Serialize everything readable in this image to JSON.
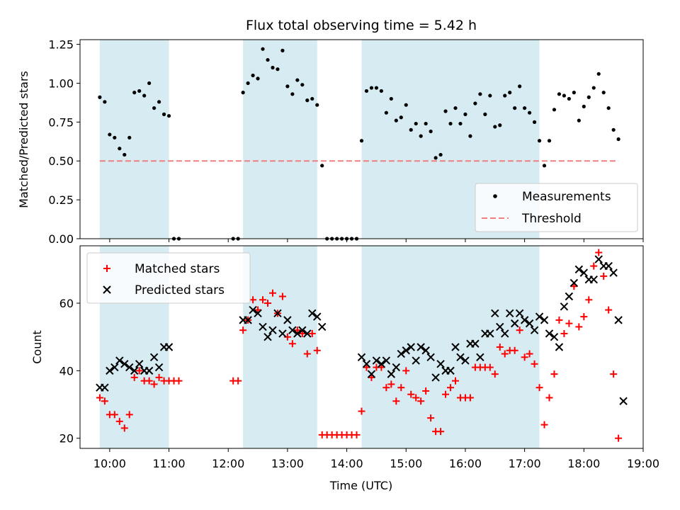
{
  "title": "Flux total observing time = 5.42 h",
  "colors": {
    "shade": "#add8e6",
    "measure": "#000000",
    "threshold": "#f08080",
    "matched": "#ff0000",
    "predicted": "#000000"
  },
  "chart_data": [
    {
      "type": "scatter",
      "ylabel": "Matched/Predicted stars",
      "ylim": [
        0,
        1.28
      ],
      "yticks": [
        0.0,
        0.25,
        0.5,
        0.75,
        1.0,
        1.25
      ],
      "ytick_labels": [
        "0.00",
        "0.25",
        "0.50",
        "0.75",
        "1.00",
        "1.25"
      ],
      "legend": {
        "position": "lower-right",
        "entries": [
          "Measurements",
          "Threshold"
        ]
      },
      "threshold": {
        "name": "Threshold",
        "y": 0.5,
        "x_range": [
          "09:50",
          "18:35"
        ]
      },
      "series": [
        {
          "name": "Measurements",
          "x": [
            "09:50",
            "09:55",
            "10:00",
            "10:05",
            "10:10",
            "10:15",
            "10:20",
            "10:25",
            "10:30",
            "10:35",
            "10:40",
            "10:45",
            "10:50",
            "10:55",
            "11:00",
            "11:05",
            "11:10",
            "12:05",
            "12:10",
            "12:15",
            "12:20",
            "12:25",
            "12:30",
            "12:35",
            "12:40",
            "12:45",
            "12:50",
            "12:55",
            "13:00",
            "13:05",
            "13:10",
            "13:15",
            "13:20",
            "13:25",
            "13:30",
            "13:35",
            "13:40",
            "13:45",
            "13:50",
            "13:55",
            "14:00",
            "14:05",
            "14:10",
            "14:15",
            "14:20",
            "14:25",
            "14:30",
            "14:35",
            "14:40",
            "14:45",
            "14:50",
            "14:55",
            "15:00",
            "15:05",
            "15:10",
            "15:15",
            "15:20",
            "15:25",
            "15:30",
            "15:35",
            "15:40",
            "15:45",
            "15:50",
            "15:55",
            "16:00",
            "16:05",
            "16:10",
            "16:15",
            "16:20",
            "16:25",
            "16:30",
            "16:35",
            "16:40",
            "16:45",
            "16:50",
            "16:55",
            "17:00",
            "17:05",
            "17:10",
            "17:15",
            "17:20",
            "17:25",
            "17:30",
            "17:35",
            "17:40",
            "17:45",
            "17:50",
            "17:55",
            "18:00",
            "18:05",
            "18:10",
            "18:15",
            "18:20",
            "18:25",
            "18:30",
            "18:35"
          ],
          "y": [
            0.91,
            0.88,
            0.67,
            0.65,
            0.58,
            0.54,
            0.65,
            0.94,
            0.95,
            0.92,
            1.0,
            0.84,
            0.88,
            0.8,
            0.79,
            0.0,
            0.0,
            0.0,
            0.0,
            0.94,
            1.0,
            1.05,
            1.03,
            1.22,
            1.15,
            1.1,
            1.09,
            1.21,
            0.98,
            0.93,
            1.02,
            0.99,
            0.89,
            0.9,
            0.86,
            0.47,
            0.0,
            0.0,
            0.0,
            0.0,
            0.0,
            0.0,
            0.0,
            0.63,
            0.95,
            0.97,
            0.97,
            0.95,
            0.81,
            0.9,
            0.76,
            0.78,
            0.86,
            0.7,
            0.74,
            0.66,
            0.74,
            0.69,
            0.52,
            0.54,
            0.82,
            0.74,
            0.84,
            0.74,
            0.8,
            0.66,
            0.87,
            0.93,
            0.8,
            0.92,
            0.72,
            0.73,
            0.92,
            0.94,
            0.84,
            0.98,
            0.84,
            0.81,
            0.75,
            0.63,
            0.47,
            0.63,
            0.83,
            0.93,
            0.92,
            0.9,
            0.94,
            0.76,
            0.85,
            0.91,
            0.97,
            1.06,
            0.94,
            0.84,
            0.7,
            0.64
          ]
        }
      ]
    },
    {
      "type": "scatter",
      "xlabel": "Time (UTC)",
      "ylabel": "Count",
      "ylim": [
        17,
        77
      ],
      "yticks": [
        20,
        40,
        60
      ],
      "ytick_labels": [
        "20",
        "40",
        "60"
      ],
      "xlim": [
        "09:30",
        "19:00"
      ],
      "xticks": [
        "10:00",
        "11:00",
        "12:00",
        "13:00",
        "14:00",
        "15:00",
        "16:00",
        "17:00",
        "18:00",
        "19:00"
      ],
      "legend": {
        "position": "upper-left",
        "entries": [
          "Matched stars",
          "Predicted stars"
        ]
      },
      "series": [
        {
          "name": "Matched stars",
          "x": [
            "09:50",
            "09:55",
            "10:00",
            "10:05",
            "10:10",
            "10:15",
            "10:20",
            "10:25",
            "10:30",
            "10:35",
            "10:40",
            "10:45",
            "10:50",
            "10:55",
            "11:00",
            "11:05",
            "11:10",
            "12:05",
            "12:10",
            "12:15",
            "12:20",
            "12:25",
            "12:30",
            "12:35",
            "12:40",
            "12:45",
            "12:50",
            "12:55",
            "13:00",
            "13:05",
            "13:10",
            "13:15",
            "13:20",
            "13:25",
            "13:30",
            "13:35",
            "13:40",
            "13:45",
            "13:50",
            "13:55",
            "14:00",
            "14:05",
            "14:10",
            "14:15",
            "14:20",
            "14:25",
            "14:30",
            "14:35",
            "14:40",
            "14:45",
            "14:50",
            "14:55",
            "15:00",
            "15:05",
            "15:10",
            "15:15",
            "15:20",
            "15:25",
            "15:30",
            "15:35",
            "15:40",
            "15:45",
            "15:50",
            "15:55",
            "16:00",
            "16:05",
            "16:10",
            "16:15",
            "16:20",
            "16:25",
            "16:30",
            "16:35",
            "16:40",
            "16:45",
            "16:50",
            "16:55",
            "17:00",
            "17:05",
            "17:10",
            "17:15",
            "17:20",
            "17:25",
            "17:30",
            "17:35",
            "17:40",
            "17:45",
            "17:50",
            "17:55",
            "18:00",
            "18:05",
            "18:10",
            "18:15",
            "18:20",
            "18:25",
            "18:30",
            "18:35"
          ],
          "y": [
            32,
            31,
            27,
            27,
            25,
            23,
            27,
            38,
            40,
            37,
            37,
            36,
            38,
            37,
            37,
            37,
            37,
            37,
            37,
            52,
            55,
            61,
            58,
            61,
            60,
            63,
            57,
            62,
            50,
            48,
            52,
            51,
            45,
            51,
            46,
            21,
            21,
            21,
            21,
            21,
            21,
            21,
            21,
            28,
            41,
            38,
            41,
            41,
            35,
            36,
            31,
            35,
            40,
            33,
            32,
            31,
            34,
            26,
            22,
            22,
            33,
            35,
            37,
            32,
            32,
            32,
            41,
            41,
            41,
            41,
            39,
            47,
            45,
            46,
            46,
            52,
            44,
            45,
            42,
            35,
            24,
            32,
            39,
            55,
            51,
            54,
            65,
            53,
            56,
            61,
            71,
            75,
            68,
            58,
            39,
            20
          ]
        },
        {
          "name": "Predicted stars",
          "x": [
            "09:50",
            "09:55",
            "10:00",
            "10:05",
            "10:10",
            "10:15",
            "10:20",
            "10:25",
            "10:30",
            "10:35",
            "10:40",
            "10:45",
            "10:50",
            "10:55",
            "11:00",
            "12:15",
            "12:20",
            "12:25",
            "12:30",
            "12:35",
            "12:40",
            "12:45",
            "12:50",
            "12:55",
            "13:00",
            "13:05",
            "13:10",
            "13:15",
            "13:20",
            "13:25",
            "13:30",
            "13:35",
            "14:15",
            "14:20",
            "14:25",
            "14:30",
            "14:35",
            "14:40",
            "14:45",
            "14:50",
            "14:55",
            "15:00",
            "15:05",
            "15:10",
            "15:15",
            "15:20",
            "15:25",
            "15:30",
            "15:35",
            "15:40",
            "15:45",
            "15:50",
            "15:55",
            "16:00",
            "16:05",
            "16:10",
            "16:15",
            "16:20",
            "16:25",
            "16:30",
            "16:35",
            "16:40",
            "16:45",
            "16:50",
            "16:55",
            "17:00",
            "17:05",
            "17:10",
            "17:15",
            "17:20",
            "17:25",
            "17:30",
            "17:35",
            "17:40",
            "17:45",
            "17:50",
            "17:55",
            "18:00",
            "18:05",
            "18:10",
            "18:15",
            "18:20",
            "18:25",
            "18:30",
            "18:35",
            "18:40"
          ],
          "y": [
            35,
            35,
            40,
            41,
            43,
            42,
            41,
            40,
            42,
            40,
            40,
            44,
            41,
            47,
            47,
            55,
            55,
            58,
            57,
            53,
            50,
            52,
            57,
            51,
            55,
            52,
            51,
            52,
            51,
            57,
            56,
            53,
            44,
            42,
            39,
            43,
            42,
            43,
            39,
            41,
            45,
            46,
            47,
            43,
            47,
            46,
            44,
            38,
            42,
            40,
            40,
            47,
            44,
            43,
            48,
            48,
            44,
            51,
            51,
            57,
            53,
            51,
            57,
            54,
            57,
            55,
            54,
            52,
            56,
            55,
            51,
            50,
            47,
            59,
            62,
            66,
            70,
            69,
            67,
            67,
            73,
            71,
            71,
            69,
            55,
            31
          ]
        }
      ]
    }
  ],
  "shaded_intervals": [
    [
      "09:50",
      "11:00"
    ],
    [
      "12:15",
      "13:30"
    ],
    [
      "14:15",
      "17:15"
    ]
  ]
}
